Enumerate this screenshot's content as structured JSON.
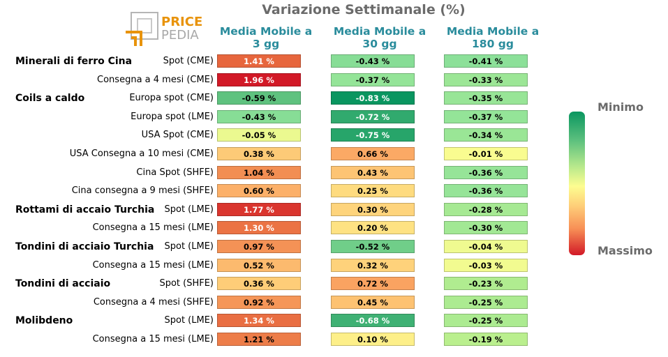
{
  "chart_data": {
    "type": "table",
    "title": "Variazione Settimanale (%)",
    "columns": [
      "Media Mobile a\n3 gg",
      "Media Mobile a\n30 gg",
      "Media Mobile a\n180 gg"
    ],
    "rows": [
      {
        "group": "Minerali di ferro Cina",
        "label": "Spot (CME)",
        "values": [
          1.41,
          -0.43,
          -0.41
        ]
      },
      {
        "group": "",
        "label": "Consegna a 4 mesi (CME)",
        "values": [
          1.96,
          -0.37,
          -0.33
        ]
      },
      {
        "group": "Coils a caldo",
        "label": "Europa spot (CME)",
        "values": [
          -0.59,
          -0.83,
          -0.35
        ]
      },
      {
        "group": "",
        "label": "Europa spot (LME)",
        "values": [
          -0.43,
          -0.72,
          -0.37
        ]
      },
      {
        "group": "",
        "label": "USA Spot (CME)",
        "values": [
          -0.05,
          -0.75,
          -0.34
        ]
      },
      {
        "group": "",
        "label": "USA Consegna a 10 mesi (CME)",
        "values": [
          0.38,
          0.66,
          -0.01
        ]
      },
      {
        "group": "",
        "label": "Cina Spot (SHFE)",
        "values": [
          1.04,
          0.43,
          -0.36
        ]
      },
      {
        "group": "",
        "label": "Cina consegna a 9 mesi (SHFE)",
        "values": [
          0.6,
          0.25,
          -0.36
        ]
      },
      {
        "group": "Rottami di accaio Turchia",
        "label": "Spot (LME)",
        "values": [
          1.77,
          0.3,
          -0.28
        ]
      },
      {
        "group": "",
        "label": "Consegna a 15 mesi (LME)",
        "values": [
          1.3,
          0.2,
          -0.3
        ]
      },
      {
        "group": "Tondini di acciaio Turchia",
        "label": "Spot (LME)",
        "values": [
          0.97,
          -0.52,
          -0.04
        ]
      },
      {
        "group": "",
        "label": "Consegna a 15 mesi (LME)",
        "values": [
          0.52,
          0.32,
          -0.03
        ]
      },
      {
        "group": "Tondini di acciaio",
        "label": "Spot (SHFE)",
        "values": [
          0.36,
          0.72,
          -0.23
        ]
      },
      {
        "group": "",
        "label": "Consegna a 4 mesi (SHFE)",
        "values": [
          0.92,
          0.45,
          -0.25
        ]
      },
      {
        "group": "Molibdeno",
        "label": "Spot (LME)",
        "values": [
          1.34,
          -0.68,
          -0.25
        ]
      },
      {
        "group": "",
        "label": "Consegna a 15 mesi (LME)",
        "values": [
          1.21,
          0.1,
          -0.19
        ]
      }
    ],
    "colorscale": {
      "min_label": "Minimo",
      "max_label": "Massimo",
      "min_color": "#0a9660",
      "mid_color": "#fdfd90",
      "max_color": "#d21927"
    },
    "value_suffix": " %"
  },
  "logo": {
    "text_top": "PRICE",
    "text_bottom": "PEDIA",
    "accent": "#e8930b",
    "secondary": "#a8a8a8"
  }
}
